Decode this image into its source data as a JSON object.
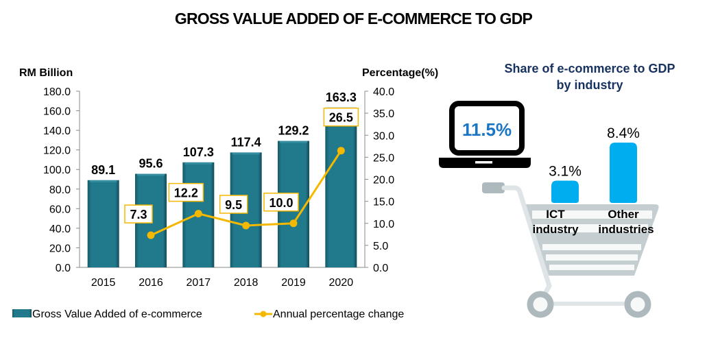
{
  "title": "GROSS VALUE ADDED OF E-COMMERCE TO GDP",
  "chart_data": {
    "type": "bar",
    "title": "GROSS VALUE ADDED OF E-COMMERCE TO GDP",
    "categories": [
      "2015",
      "2016",
      "2017",
      "2018",
      "2019",
      "2020"
    ],
    "ylabel": "RM Billion",
    "ylabel_right": "Percentage(%)",
    "ylim": [
      0,
      180
    ],
    "ylim_right": [
      0,
      40
    ],
    "yticks": [
      "0.0",
      "20.0",
      "40.0",
      "60.0",
      "80.0",
      "100.0",
      "120.0",
      "140.0",
      "160.0",
      "180.0"
    ],
    "yticks_right": [
      "0.0",
      "5.0",
      "10.0",
      "15.0",
      "20.0",
      "25.0",
      "30.0",
      "35.0",
      "40.0"
    ],
    "grid": false,
    "legend_position": "bottom",
    "series": [
      {
        "name": "Gross Value Added of e-commerce",
        "type": "bar",
        "axis": "left",
        "color": "#217a8c",
        "values": [
          89.1,
          95.6,
          107.3,
          117.4,
          129.2,
          163.3
        ],
        "labels": [
          "89.1",
          "95.6",
          "107.3",
          "117.4",
          "129.2",
          "163.3"
        ]
      },
      {
        "name": "Annual percentage change",
        "type": "line",
        "axis": "right",
        "color": "#f5b800",
        "values": [
          null,
          7.3,
          12.2,
          9.5,
          10.0,
          26.5
        ],
        "labels": [
          null,
          "7.3",
          "12.2",
          "9.5",
          "10.0",
          "26.5"
        ]
      }
    ]
  },
  "share": {
    "title_line1": "Share of e-commerce to GDP",
    "title_line2": "by industry",
    "total_label": "11.5%",
    "total_color": "#1a75c4",
    "bar_color": "#00adef",
    "industries": [
      {
        "name_line1": "ICT",
        "name_line2": "industry",
        "value": 3.1,
        "label": "3.1%"
      },
      {
        "name_line1": "Other",
        "name_line2": "industries",
        "value": 8.4,
        "label": "8.4%"
      }
    ]
  }
}
